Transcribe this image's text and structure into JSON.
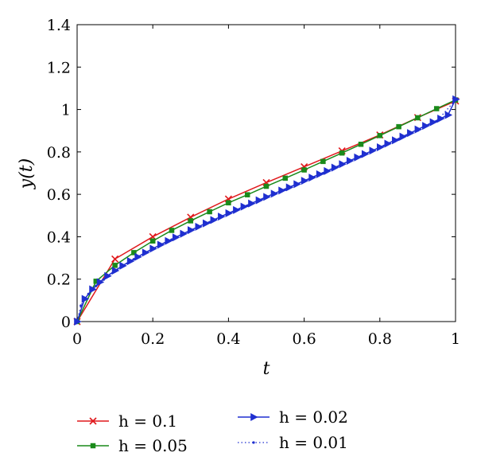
{
  "chart_data": {
    "type": "line",
    "title": "",
    "xlabel": "t",
    "ylabel": "y(t)",
    "xlim": [
      0,
      1
    ],
    "ylim": [
      0,
      1.4
    ],
    "xticks": [
      "0",
      "0.2",
      "0.4",
      "0.6",
      "0.8",
      "1"
    ],
    "yticks": [
      "0",
      "0.2",
      "0.4",
      "0.6",
      "0.8",
      "1",
      "1.2",
      "1.4"
    ],
    "grid": false,
    "legend_position": "bottom",
    "series": [
      {
        "name": "h = 0.1",
        "color": "#e0191c",
        "marker": "x",
        "line_style": "solid",
        "x": [
          0,
          0.1,
          0.2,
          0.3,
          0.4,
          0.5,
          0.6,
          0.7,
          0.8,
          0.9,
          1.0
        ],
        "y": [
          0,
          0.295,
          0.4,
          0.492,
          0.578,
          0.655,
          0.73,
          0.805,
          0.88,
          0.962,
          1.04
        ]
      },
      {
        "name": "h = 0.05",
        "color": "#1a8a1a",
        "marker": "square",
        "line_style": "solid",
        "x": [
          0,
          0.05,
          0.1,
          0.15,
          0.2,
          0.25,
          0.3,
          0.35,
          0.4,
          0.45,
          0.5,
          0.55,
          0.6,
          0.65,
          0.7,
          0.75,
          0.8,
          0.85,
          0.9,
          0.95,
          1.0
        ],
        "y": [
          0,
          0.19,
          0.265,
          0.325,
          0.38,
          0.43,
          0.475,
          0.518,
          0.56,
          0.598,
          0.638,
          0.676,
          0.715,
          0.755,
          0.795,
          0.836,
          0.877,
          0.919,
          0.961,
          1.004,
          1.045
        ]
      },
      {
        "name": "h = 0.02",
        "color": "#1f2fd0",
        "marker": "triangle-right",
        "line_style": "solid",
        "x": [
          0,
          0.02,
          0.04,
          0.06,
          0.08,
          0.1,
          0.12,
          0.14,
          0.16,
          0.18,
          0.2,
          0.22,
          0.24,
          0.26,
          0.28,
          0.3,
          0.32,
          0.34,
          0.36,
          0.38,
          0.4,
          0.42,
          0.44,
          0.46,
          0.48,
          0.5,
          0.52,
          0.54,
          0.56,
          0.58,
          0.6,
          0.62,
          0.64,
          0.66,
          0.68,
          0.7,
          0.72,
          0.74,
          0.76,
          0.78,
          0.8,
          0.82,
          0.84,
          0.86,
          0.88,
          0.9,
          0.92,
          0.94,
          0.96,
          0.98,
          1.0
        ],
        "y": [
          0,
          0.107,
          0.152,
          0.186,
          0.215,
          0.24,
          0.263,
          0.285,
          0.305,
          0.325,
          0.344,
          0.362,
          0.38,
          0.397,
          0.414,
          0.431,
          0.447,
          0.463,
          0.479,
          0.495,
          0.511,
          0.526,
          0.542,
          0.557,
          0.572,
          0.588,
          0.603,
          0.618,
          0.633,
          0.648,
          0.664,
          0.679,
          0.695,
          0.71,
          0.726,
          0.742,
          0.758,
          0.774,
          0.79,
          0.806,
          0.822,
          0.839,
          0.855,
          0.872,
          0.889,
          0.906,
          0.923,
          0.94,
          0.957,
          0.974,
          1.048
        ]
      },
      {
        "name": "h = 0.01",
        "color": "#1f2fd0",
        "marker": "dot",
        "line_style": "dotted",
        "x": [
          0,
          0.01,
          0.02,
          0.03,
          0.05,
          0.07,
          0.1,
          0.15,
          0.2,
          0.25,
          0.3,
          0.35,
          0.4,
          0.45,
          0.5,
          0.55,
          0.6,
          0.65,
          0.7,
          0.75,
          0.8,
          0.85,
          0.9,
          0.95,
          1.0
        ],
        "y": [
          0,
          0.075,
          0.107,
          0.13,
          0.168,
          0.198,
          0.237,
          0.294,
          0.342,
          0.386,
          0.428,
          0.468,
          0.507,
          0.546,
          0.584,
          0.622,
          0.66,
          0.699,
          0.738,
          0.778,
          0.818,
          0.859,
          0.901,
          0.944,
          1.045
        ]
      }
    ]
  }
}
